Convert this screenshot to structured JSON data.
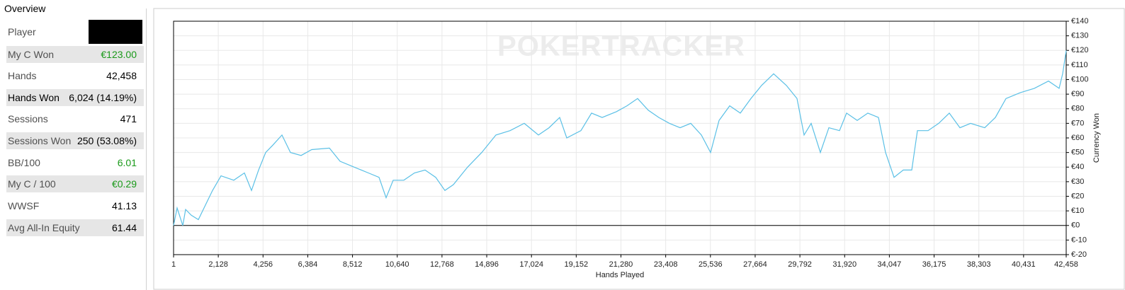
{
  "overview": {
    "title": "Overview",
    "rows": [
      {
        "label": "Player"
      },
      {
        "label": "My C Won",
        "value": "€123.00"
      },
      {
        "label": "Hands",
        "value": "42,458"
      },
      {
        "label": "Hands Won",
        "value": "6,024 (14.19%)"
      },
      {
        "label": "Sessions",
        "value": "471"
      },
      {
        "label": "Sessions Won",
        "value": "250 (53.08%)"
      },
      {
        "label": "BB/100",
        "value": "6.01"
      },
      {
        "label": "My C / 100",
        "value": "€0.29"
      },
      {
        "label": "WWSF",
        "value": "41.13"
      },
      {
        "label": "Avg All-In Equity",
        "value": "61.44"
      }
    ]
  },
  "chart_data": {
    "type": "line",
    "watermark": "POKERTRACKER",
    "xlabel": "Hands Played",
    "ylabel": "Currency Won",
    "color": "#5bc0e6",
    "grid": true,
    "x": [
      1,
      169,
      439,
      574,
      843,
      1180,
      1517,
      1854,
      2258,
      2865,
      3371,
      3708,
      4045,
      4382,
      4718,
      5156,
      5561,
      6066,
      6571,
      7414,
      7919,
      8593,
      9266,
      9772,
      10109,
      10446,
      10951,
      11457,
      11962,
      12468,
      12906,
      13310,
      13984,
      14658,
      15332,
      16006,
      16680,
      17353,
      17859,
      18364,
      18701,
      19375,
      19880,
      20386,
      21061,
      21566,
      22071,
      22577,
      23082,
      23588,
      24093,
      24599,
      25104,
      25543,
      25947,
      26452,
      26958,
      27463,
      27969,
      28541,
      29148,
      29653,
      29990,
      30327,
      30765,
      31169,
      31675,
      32012,
      32517,
      33023,
      33528,
      33866,
      34270,
      34708,
      35112,
      35382,
      35887,
      36393,
      36898,
      37404,
      37909,
      38583,
      39088,
      39594,
      40268,
      40942,
      41615,
      42121,
      42290,
      42458
    ],
    "values": [
      0,
      12,
      0,
      11,
      7,
      4,
      14,
      24,
      34,
      31,
      36,
      24,
      38,
      50,
      55,
      62,
      50,
      48,
      52,
      53,
      44,
      40,
      36,
      33,
      19,
      31,
      31,
      36,
      38,
      33,
      24,
      28,
      40,
      50,
      62,
      65,
      70,
      62,
      67,
      74,
      60,
      65,
      77,
      74,
      78,
      82,
      87,
      79,
      74,
      70,
      67,
      70,
      62,
      50,
      72,
      82,
      77,
      87,
      96,
      104,
      96,
      87,
      62,
      70,
      50,
      67,
      65,
      77,
      72,
      77,
      74,
      50,
      33,
      38,
      38,
      65,
      65,
      70,
      77,
      67,
      70,
      67,
      74,
      87,
      91,
      94,
      99,
      94,
      104,
      120
    ],
    "xlim": [
      1,
      42458
    ],
    "xticks": [
      1,
      {
        "value": 2128,
        "label": "2,128"
      },
      {
        "value": 4256,
        "label": "4,256"
      },
      {
        "value": 6384,
        "label": "6,384"
      },
      {
        "value": 8512,
        "label": "8,512"
      },
      {
        "value": 10640,
        "label": "10,640"
      },
      {
        "value": 12768,
        "label": "12,768"
      },
      {
        "value": 14896,
        "label": "14,896"
      },
      {
        "value": 17024,
        "label": "17,024"
      },
      {
        "value": 19152,
        "label": "19,152"
      },
      {
        "value": 21280,
        "label": "21,280"
      },
      {
        "value": 23408,
        "label": "23,408"
      },
      {
        "value": 25536,
        "label": "25,536"
      },
      {
        "value": 27664,
        "label": "27,664"
      },
      {
        "value": 29792,
        "label": "29,792"
      },
      {
        "value": 31920,
        "label": "31,920"
      },
      {
        "value": 34047,
        "label": "34,047"
      },
      {
        "value": 36175,
        "label": "36,175"
      },
      {
        "value": 38303,
        "label": "38,303"
      },
      {
        "value": 40431,
        "label": "40,431"
      },
      {
        "value": 42458,
        "label": "42,458"
      }
    ],
    "ylim": [
      -20,
      140
    ],
    "yticks": [
      {
        "value": 140,
        "label": "€140"
      },
      {
        "value": 130,
        "label": "€130"
      },
      {
        "value": 120,
        "label": "€120"
      },
      {
        "value": 110,
        "label": "€110"
      },
      {
        "value": 100,
        "label": "€100"
      },
      {
        "value": 90,
        "label": "€90"
      },
      {
        "value": 80,
        "label": "€80"
      },
      {
        "value": 70,
        "label": "€70"
      },
      {
        "value": 60,
        "label": "€60"
      },
      {
        "value": 50,
        "label": "€50"
      },
      {
        "value": 40,
        "label": "€40"
      },
      {
        "value": 30,
        "label": "€30"
      },
      {
        "value": 20,
        "label": "€20"
      },
      {
        "value": 10,
        "label": "€10"
      },
      {
        "value": 0,
        "label": "€0"
      },
      {
        "value": -10,
        "label": "€-10"
      },
      {
        "value": -20,
        "label": "€-20"
      }
    ]
  }
}
